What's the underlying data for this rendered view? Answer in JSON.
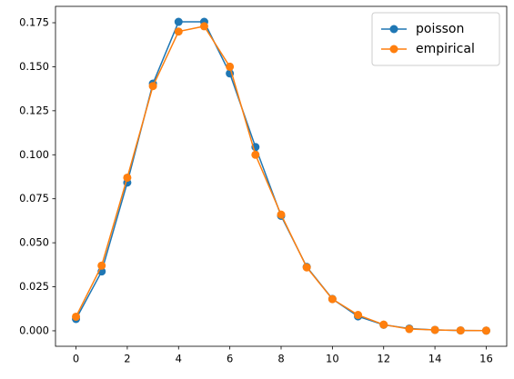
{
  "chart_data": {
    "type": "line",
    "x": [
      0,
      1,
      2,
      3,
      4,
      5,
      6,
      7,
      8,
      9,
      10,
      11,
      12,
      13,
      14,
      15,
      16
    ],
    "series": [
      {
        "name": "poisson",
        "color": "#1f77b4",
        "values": [
          0.0067,
          0.0337,
          0.0842,
          0.1404,
          0.1755,
          0.1755,
          0.1462,
          0.1044,
          0.0653,
          0.0363,
          0.0181,
          0.0082,
          0.0034,
          0.0013,
          0.0005,
          0.0002,
          0.0001
        ]
      },
      {
        "name": "empirical",
        "color": "#ff7f0e",
        "values": [
          0.008,
          0.037,
          0.087,
          0.139,
          0.17,
          0.173,
          0.15,
          0.1,
          0.066,
          0.036,
          0.018,
          0.009,
          0.0035,
          0.001,
          0.0005,
          0.0002,
          0.0001
        ]
      }
    ],
    "xlim": [
      -0.8,
      16.8
    ],
    "xticks": [
      0,
      2,
      4,
      6,
      8,
      10,
      12,
      14,
      16
    ],
    "ylim": [
      -0.0088,
      0.1843
    ],
    "yticks": [
      {
        "value": 0,
        "label": "0.000"
      },
      {
        "value": 0.025,
        "label": "0.025"
      },
      {
        "value": 0.05,
        "label": "0.050"
      },
      {
        "value": 0.075,
        "label": "0.075"
      },
      {
        "value": 0.1,
        "label": "0.100"
      },
      {
        "value": 0.125,
        "label": "0.125"
      },
      {
        "value": 0.15,
        "label": "0.150"
      },
      {
        "value": 0.175,
        "label": "0.175"
      }
    ],
    "legend": "upper right"
  }
}
